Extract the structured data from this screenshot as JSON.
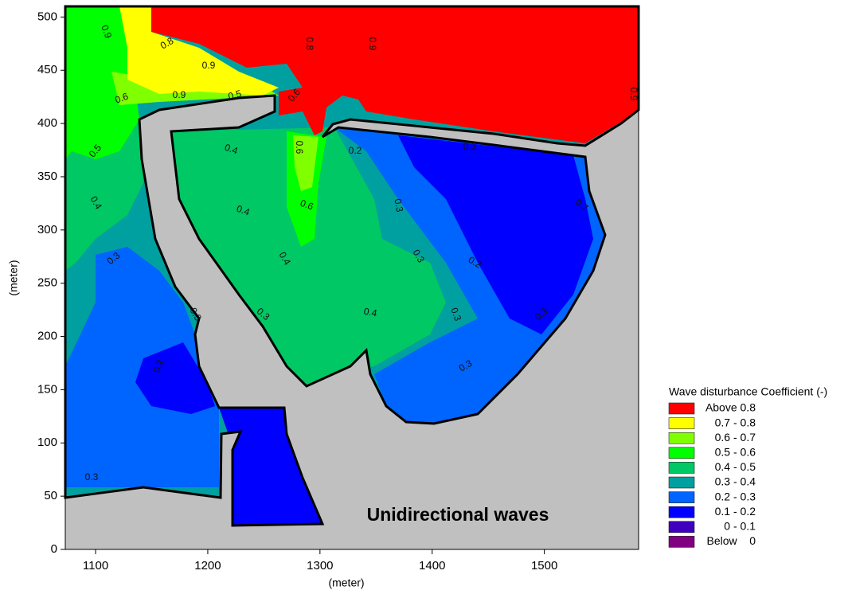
{
  "chart_data": {
    "type": "contour",
    "x_label": "(meter)",
    "y_label": "(meter)",
    "xlim": [
      1073,
      1584
    ],
    "xticks": [
      1100,
      1200,
      1300,
      1400,
      1500
    ],
    "ylim": [
      0,
      510
    ],
    "yticks": [
      0,
      50,
      100,
      150,
      200,
      250,
      300,
      350,
      400,
      450,
      500
    ],
    "land_color": "#c0c0c0",
    "annotation": "Unidirectional waves",
    "legend_title": "Wave disturbance Coefficient (-)",
    "levels": [
      {
        "label": "Above 0.8",
        "color": "#ff0000"
      },
      {
        "label": "0.7 - 0.8",
        "color": "#ffff00"
      },
      {
        "label": "0.6 - 0.7",
        "color": "#80ff00"
      },
      {
        "label": "0.5 - 0.6",
        "color": "#00ff00"
      },
      {
        "label": "0.4 - 0.5",
        "color": "#00c864"
      },
      {
        "label": "0.3 - 0.4",
        "color": "#00a0a0"
      },
      {
        "label": "0.2 - 0.3",
        "color": "#0064ff"
      },
      {
        "label": "0.1 - 0.2",
        "color": "#0000ff"
      },
      {
        "label": "0 - 0.1",
        "color": "#4000c0"
      },
      {
        "label": "Below    0",
        "color": "#800080"
      }
    ],
    "contour_labels": [
      "0.9",
      "0.8",
      "0.9",
      "0.8",
      "0.9",
      "0.6",
      "0.9",
      "0.5",
      "0.6",
      "0.9",
      "0.5",
      "0.4",
      "0.3",
      "0.4",
      "0.6",
      "0.2",
      "0.3",
      "0.4",
      "0.6",
      "0.3",
      "0.7",
      "0.4",
      "0.3",
      "0.2",
      "0.3",
      "0.3",
      "0.4",
      "0.3",
      "0.3",
      "0.2",
      "0.3",
      "0.3"
    ]
  }
}
